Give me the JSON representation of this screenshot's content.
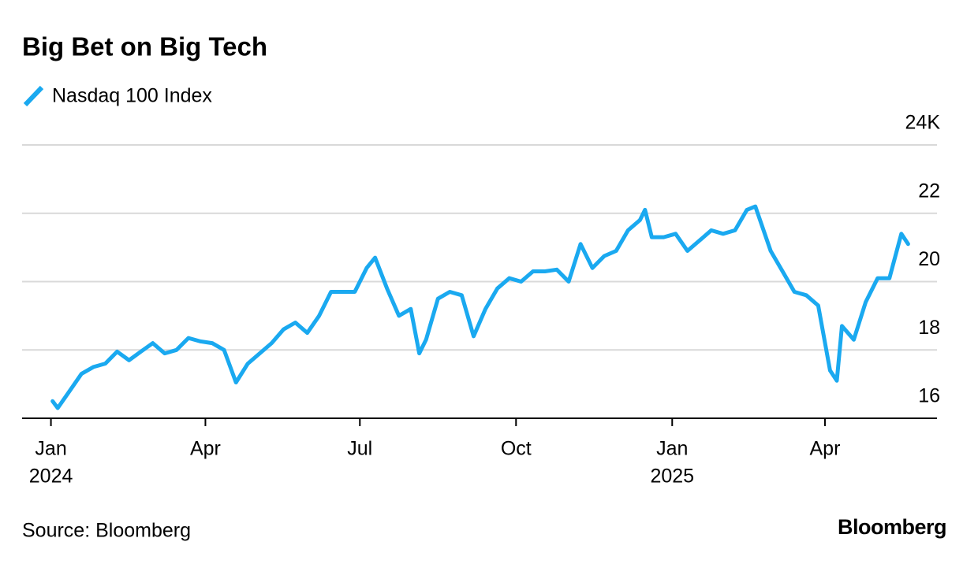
{
  "chart_data": {
    "type": "line",
    "title": "Big Bet on Big Tech",
    "source": "Source: Bloomberg",
    "brand": "Bloomberg",
    "series": [
      {
        "name": "Nasdaq 100 Index",
        "color": "#1aa9f0",
        "values": [
          16.5,
          16.3,
          16.8,
          17.3,
          17.5,
          17.6,
          17.95,
          17.7,
          17.95,
          18.2,
          17.9,
          18.0,
          18.35,
          18.25,
          18.2,
          18.0,
          17.05,
          17.6,
          17.9,
          18.2,
          18.6,
          18.8,
          18.5,
          19.0,
          19.7,
          19.7,
          19.7,
          20.4,
          20.7,
          19.8,
          19.0,
          19.2,
          17.9,
          18.3,
          19.5,
          19.7,
          19.6,
          18.4,
          19.2,
          19.8,
          20.1,
          20.0,
          20.3,
          20.3,
          20.35,
          20.0,
          21.1,
          20.4,
          20.75,
          20.9,
          21.5,
          21.8,
          22.1,
          21.3,
          21.3,
          21.4,
          20.9,
          21.2,
          21.5,
          21.4,
          21.5,
          22.1,
          22.2,
          20.9,
          20.3,
          19.7,
          19.6,
          19.3,
          17.4,
          17.1,
          18.7,
          18.3,
          19.4,
          20.1,
          20.1,
          21.4,
          21.1
        ]
      }
    ],
    "x": [
      "2024-01-02",
      "2024-01-05",
      "2024-01-12",
      "2024-01-19",
      "2024-01-26",
      "2024-02-02",
      "2024-02-09",
      "2024-02-16",
      "2024-02-23",
      "2024-03-01",
      "2024-03-08",
      "2024-03-15",
      "2024-03-22",
      "2024-03-29",
      "2024-04-05",
      "2024-04-12",
      "2024-04-19",
      "2024-04-26",
      "2024-05-03",
      "2024-05-10",
      "2024-05-17",
      "2024-05-24",
      "2024-05-31",
      "2024-06-07",
      "2024-06-14",
      "2024-06-21",
      "2024-06-28",
      "2024-07-05",
      "2024-07-10",
      "2024-07-17",
      "2024-07-24",
      "2024-07-31",
      "2024-08-05",
      "2024-08-09",
      "2024-08-16",
      "2024-08-23",
      "2024-08-30",
      "2024-09-06",
      "2024-09-13",
      "2024-09-20",
      "2024-09-27",
      "2024-10-04",
      "2024-10-11",
      "2024-10-18",
      "2024-10-25",
      "2024-11-01",
      "2024-11-08",
      "2024-11-15",
      "2024-11-22",
      "2024-11-29",
      "2024-12-06",
      "2024-12-13",
      "2024-12-16",
      "2024-12-20",
      "2024-12-27",
      "2025-01-03",
      "2025-01-10",
      "2025-01-17",
      "2025-01-24",
      "2025-01-31",
      "2025-02-07",
      "2025-02-14",
      "2025-02-19",
      "2025-02-28",
      "2025-03-07",
      "2025-03-14",
      "2025-03-21",
      "2025-03-28",
      "2025-04-04",
      "2025-04-08",
      "2025-04-11",
      "2025-04-18",
      "2025-04-25",
      "2025-05-02",
      "2025-05-09",
      "2025-05-16",
      "2025-05-20"
    ],
    "xlim": [
      "2023-12-15",
      "2025-06-06"
    ],
    "xticks": [
      {
        "value": "2024-01-01",
        "label": "Jan",
        "sublabel": "2024"
      },
      {
        "value": "2024-04-01",
        "label": "Apr"
      },
      {
        "value": "2024-07-01",
        "label": "Jul"
      },
      {
        "value": "2024-10-01",
        "label": "Oct"
      },
      {
        "value": "2025-01-01",
        "label": "Jan",
        "sublabel": "2025"
      },
      {
        "value": "2025-04-01",
        "label": "Apr"
      }
    ],
    "ylim": [
      16,
      24
    ],
    "yticks": [
      16,
      18,
      20,
      22,
      {
        "value": 24,
        "label": "24K"
      }
    ],
    "grid": true
  }
}
